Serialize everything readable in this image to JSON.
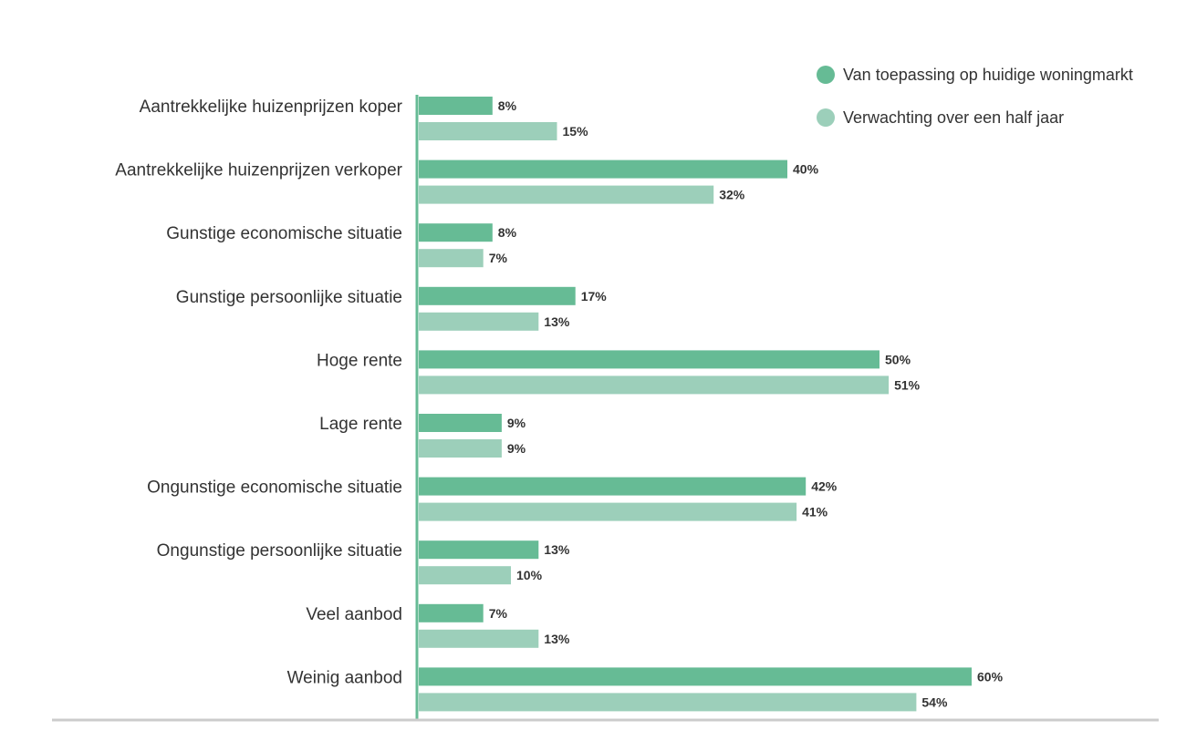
{
  "chart_data": {
    "type": "bar",
    "orientation": "horizontal",
    "title": "",
    "xlabel": "",
    "ylabel": "",
    "xlim": [
      0,
      60
    ],
    "grid": false,
    "legend_position": "top-right",
    "value_suffix": "%",
    "categories": [
      "Aantrekkelijke huizenprijzen koper",
      "Aantrekkelijke huizenprijzen verkoper",
      "Gunstige economische situatie",
      "Gunstige persoonlijke situatie",
      "Hoge rente",
      "Lage rente",
      "Ongunstige economische situatie",
      "Ongunstige persoonlijke situatie",
      "Veel aanbod",
      "Weinig aanbod"
    ],
    "series": [
      {
        "name": "Van toepassing op huidige woningmarkt",
        "color": "#66bb95",
        "values": [
          8,
          40,
          8,
          17,
          50,
          9,
          42,
          13,
          7,
          60
        ],
        "labels": [
          "8%",
          "40%",
          "8%",
          "17%",
          "50%",
          "9%",
          "42%",
          "13%",
          "7%",
          "60%"
        ]
      },
      {
        "name": "Verwachting over een half jaar",
        "color": "#9ccfba",
        "values": [
          15,
          32,
          7,
          13,
          51,
          9,
          41,
          10,
          13,
          54
        ],
        "labels": [
          "15%",
          "32%",
          "7%",
          "13%",
          "51%",
          "9%",
          "41%",
          "10%",
          "13%",
          "54%"
        ]
      }
    ]
  }
}
